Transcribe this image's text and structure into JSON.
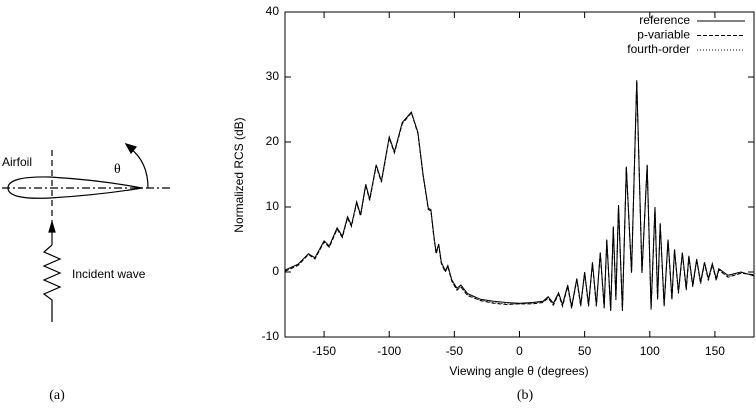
{
  "diagram": {
    "airfoil_label": "Airfoil",
    "angle_label": "θ",
    "wave_label": "Incident wave",
    "caption": "(a)"
  },
  "chart_data": {
    "type": "line",
    "caption": "(b)",
    "x_label": "Viewing angle θ (degrees)",
    "y_label": "Normalized RCS (dB)",
    "xlim": [
      -180,
      180
    ],
    "xticks": [
      -150,
      -100,
      -50,
      0,
      50,
      100,
      150
    ],
    "ylim": [
      -10,
      40
    ],
    "yticks": [
      -10,
      0,
      10,
      20,
      30,
      40
    ],
    "legend": "top-right",
    "x": [
      -180,
      -170,
      -162,
      -157,
      -150,
      -146,
      -140,
      -136,
      -132,
      -129,
      -125,
      -122,
      -118,
      -115,
      -110,
      -106,
      -100,
      -96,
      -90,
      -83,
      -78,
      -74,
      -70,
      -68,
      -66,
      -64,
      -62,
      -60,
      -57,
      -55,
      -52,
      -48,
      -45,
      -40,
      -30,
      -20,
      -10,
      0,
      10,
      18,
      22,
      26,
      30,
      33,
      37,
      40,
      44,
      47,
      50,
      53,
      56,
      59,
      62,
      65,
      67,
      70,
      72,
      74,
      76,
      79,
      82,
      86,
      90,
      94,
      98,
      101,
      104,
      106,
      108,
      111,
      114,
      117,
      119,
      122,
      125,
      128,
      130,
      133,
      136,
      139,
      142,
      145,
      148,
      151,
      153,
      160,
      170,
      180
    ],
    "series": [
      {
        "name": "reference",
        "color": "#000000",
        "line_style": "solid",
        "values": [
          0.3,
          1.2,
          2.8,
          2.2,
          4.8,
          4.0,
          6.8,
          5.5,
          8.5,
          7.2,
          10.8,
          8.8,
          13.5,
          11.2,
          16.5,
          14.0,
          20.8,
          18.5,
          23.0,
          24.6,
          21.5,
          15.0,
          9.8,
          9.6,
          6.0,
          3.0,
          4.3,
          1.5,
          0.2,
          1.0,
          -1.2,
          -2.5,
          -2.0,
          -3.3,
          -4.2,
          -4.5,
          -4.7,
          -4.8,
          -4.7,
          -4.5,
          -3.8,
          -4.8,
          -3.2,
          -5.0,
          -2.0,
          -5.3,
          -1.0,
          -5.0,
          0.0,
          -5.0,
          1.5,
          -5.0,
          3.0,
          -5.3,
          5.0,
          -5.8,
          7.0,
          -4.0,
          10.3,
          -5.8,
          16.2,
          0.0,
          29.5,
          0.0,
          16.5,
          -5.5,
          10.0,
          -4.0,
          7.5,
          -5.0,
          5.0,
          -4.0,
          3.5,
          -3.0,
          3.0,
          -2.5,
          2.5,
          -2.0,
          2.0,
          -1.5,
          1.5,
          -1.0,
          1.3,
          -1.0,
          0.5,
          -0.5,
          0.0,
          -0.6
        ]
      },
      {
        "name": "p-variable",
        "color": "#000000",
        "line_style": "dashed",
        "values": [
          0.1,
          1.0,
          2.7,
          2.0,
          4.6,
          3.8,
          6.6,
          5.3,
          8.3,
          7.0,
          10.6,
          8.6,
          13.3,
          11.0,
          16.3,
          13.8,
          20.6,
          18.3,
          22.8,
          24.5,
          21.3,
          14.8,
          9.6,
          9.4,
          5.8,
          2.8,
          4.1,
          1.3,
          0.0,
          0.8,
          -1.4,
          -2.8,
          -2.3,
          -3.6,
          -4.4,
          -4.8,
          -5.0,
          -4.9,
          -4.9,
          -4.7,
          -4.0,
          -5.1,
          -3.4,
          -5.3,
          -2.2,
          -5.6,
          -1.2,
          -5.3,
          -0.2,
          -5.3,
          1.3,
          -5.3,
          2.8,
          -5.6,
          4.8,
          -6.0,
          6.8,
          -4.3,
          10.1,
          -6.0,
          16.0,
          -0.2,
          29.3,
          -0.2,
          16.3,
          -5.8,
          9.8,
          -4.3,
          7.3,
          -5.3,
          4.8,
          -4.3,
          3.3,
          -3.3,
          2.8,
          -2.8,
          2.3,
          -2.3,
          1.8,
          -1.8,
          1.3,
          -1.3,
          1.1,
          -1.3,
          0.3,
          -0.8,
          -0.2,
          -0.4
        ]
      },
      {
        "name": "fourth-order",
        "color": "#000000",
        "line_style": "dotted",
        "values": [
          0.2,
          1.1,
          2.8,
          2.1,
          4.7,
          3.9,
          6.7,
          5.4,
          8.4,
          7.1,
          10.7,
          8.7,
          13.4,
          11.1,
          16.4,
          13.9,
          20.7,
          18.4,
          22.9,
          24.5,
          21.4,
          14.9,
          9.7,
          9.5,
          5.9,
          2.9,
          4.2,
          1.4,
          0.1,
          0.9,
          -1.3,
          -2.7,
          -2.2,
          -3.5,
          -4.3,
          -4.7,
          -4.9,
          -4.9,
          -4.8,
          -4.6,
          -3.9,
          -5.0,
          -3.3,
          -5.2,
          -2.1,
          -5.5,
          -1.1,
          -5.2,
          -0.1,
          -5.2,
          1.4,
          -5.2,
          2.9,
          -5.5,
          4.9,
          -5.9,
          6.9,
          -4.2,
          10.2,
          -5.9,
          16.1,
          -0.1,
          29.4,
          -0.1,
          16.4,
          -5.7,
          9.9,
          -4.2,
          7.4,
          -5.2,
          4.9,
          -4.2,
          3.4,
          -3.2,
          2.9,
          -2.7,
          2.4,
          -2.2,
          1.9,
          -1.7,
          1.4,
          -1.2,
          1.2,
          -1.2,
          0.4,
          -0.7,
          -0.1,
          -0.5
        ]
      }
    ]
  }
}
